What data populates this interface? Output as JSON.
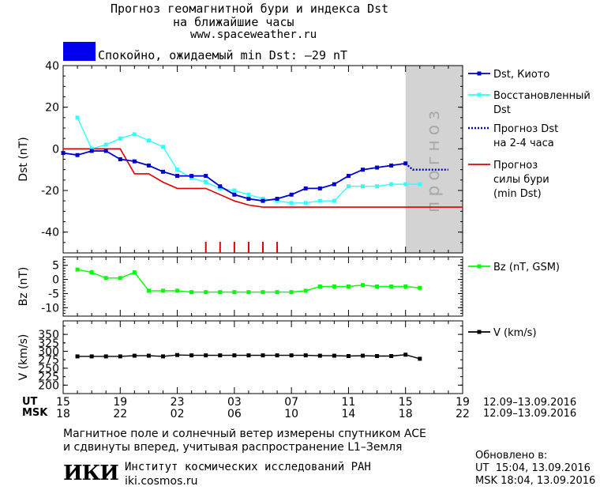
{
  "header": {
    "title_line1": "Прогноз геомагнитной бури и индекса Dst",
    "title_line2": "на ближайшие часы",
    "site": "www.spaceweather.ru"
  },
  "status": {
    "color": "#0000ee",
    "text": "Спокойно, ожидаемый min Dst: –29 nT"
  },
  "forecast_band_label": "прогноз",
  "colors": {
    "dst_kyoto": "#0000cc",
    "dst_restored": "#33ffff",
    "dst_forecast": "#0000cc",
    "storm_min": "#dd0000",
    "bz": "#00ff00",
    "v": "#000000",
    "forecast_band": "#d3d3d3"
  },
  "legend": {
    "dst_kyoto": "Dst, Киото",
    "dst_restored_1": "Восстановленный",
    "dst_restored_2": "Dst",
    "forecast_1": "Прогноз Dst",
    "forecast_2": "на 2-4 часа",
    "storm_1": "Прогноз",
    "storm_2": "силы бури",
    "storm_3": "(min Dst)",
    "bz": "Bz (nT, GSM)",
    "v": "V (km/s)"
  },
  "time_axis": {
    "ut_label": "UT",
    "msk_label": "MSK",
    "ut_ticks": [
      "15",
      "19",
      "23",
      "03",
      "07",
      "11",
      "15",
      "19"
    ],
    "msk_ticks": [
      "18",
      "22",
      "02",
      "06",
      "10",
      "14",
      "18",
      "22"
    ],
    "ut_range": "12.09–13.09.2016",
    "msk_range": "12.09–13.09.2016"
  },
  "footer": {
    "note_1": "Магнитное поле и солнечный ветер измерены спутником ACE",
    "note_2": "и сдвинуты вперед, учитывая распространение L1–Земля",
    "updated_label": "Обновлено в:",
    "updated_ut": "UT  15:04, 13.09.2016",
    "updated_msk": "MSK 18:04, 13.09.2016",
    "logo": "ИКИ",
    "institute": "Институт космических исследований РАН",
    "institute_site": "iki.cosmos.ru"
  },
  "chart_data": [
    {
      "type": "line",
      "ylabel": "Dst (nT)",
      "ylim": [
        -50,
        40
      ],
      "yticks": [
        40,
        20,
        0,
        -20,
        -40
      ],
      "xlim": [
        15,
        43
      ],
      "forecast_region_x": [
        39,
        43
      ],
      "series": [
        {
          "name": "Dst, Киото",
          "x": [
            15,
            16,
            17,
            18,
            19,
            20,
            21,
            22,
            23,
            24,
            25,
            26,
            27,
            28,
            29,
            30,
            31,
            32,
            33,
            34,
            35,
            36,
            37,
            38,
            39
          ],
          "y": [
            -2,
            -3,
            -1,
            -1,
            -5,
            -6,
            -8,
            -11,
            -13,
            -13,
            -13,
            -18,
            -22,
            -24,
            -25,
            -24,
            -22,
            -19,
            -19,
            -17,
            -13,
            -10,
            -9,
            -8,
            -7
          ]
        },
        {
          "name": "Восстановленный Dst",
          "x": [
            16,
            17,
            18,
            19,
            20,
            21,
            22,
            23,
            24,
            25,
            26,
            27,
            28,
            29,
            30,
            31,
            32,
            33,
            34,
            35,
            36,
            37,
            38,
            39,
            40
          ],
          "y": [
            15,
            0,
            2,
            5,
            7,
            4,
            1,
            -10,
            -14,
            -16,
            -19,
            -20,
            -22,
            -24,
            -25,
            -26,
            -26,
            -25,
            -25,
            -18,
            -18,
            -18,
            -17,
            -17,
            -17
          ]
        },
        {
          "name": "Прогноз Dst на 2-4 часа",
          "x": [
            39,
            39.5,
            40,
            41,
            42
          ],
          "y": [
            -7,
            -10,
            -10,
            -10,
            -10
          ]
        },
        {
          "name": "Прогноз силы бури (min Dst)",
          "x": [
            15,
            19,
            20,
            21,
            22,
            23,
            24,
            25,
            26,
            27,
            28,
            29,
            30,
            31,
            32,
            33,
            34,
            35,
            36,
            37,
            38,
            39,
            40,
            41,
            42,
            43
          ],
          "y": [
            0,
            0,
            -12,
            -12,
            -16,
            -19,
            -19,
            -19,
            -22,
            -25,
            -27,
            -28,
            -28,
            -28,
            -28,
            -28,
            -28,
            -28,
            -28,
            -28,
            -28,
            -28,
            -28,
            -28,
            -28,
            -28
          ]
        }
      ],
      "storm_marks_x": [
        25,
        26,
        27,
        28,
        29,
        30
      ]
    },
    {
      "type": "line",
      "ylabel": "Bz (nT)",
      "ylim": [
        -13,
        8
      ],
      "yticks": [
        5,
        0,
        -5,
        -10
      ],
      "xlim": [
        15,
        43
      ],
      "series": [
        {
          "name": "Bz (nT, GSM)",
          "x": [
            16,
            17,
            18,
            19,
            20,
            21,
            22,
            23,
            24,
            25,
            26,
            27,
            28,
            29,
            30,
            31,
            32,
            33,
            34,
            35,
            36,
            37,
            38,
            39,
            40
          ],
          "y": [
            3.5,
            2.5,
            0.5,
            0.5,
            2.5,
            -4,
            -4,
            -4,
            -4.5,
            -4.5,
            -4.5,
            -4.5,
            -4.5,
            -4.5,
            -4.5,
            -4.5,
            -4,
            -2.5,
            -2.5,
            -2.5,
            -2,
            -2.5,
            -2.5,
            -2.5,
            -3
          ]
        }
      ]
    },
    {
      "type": "line",
      "ylabel": "V (km/s)",
      "ylim": [
        175,
        390
      ],
      "yticks": [
        350,
        300,
        250,
        200
      ],
      "ytick_labels_extra": [
        "325",
        "275",
        "225"
      ],
      "xlim": [
        15,
        43
      ],
      "series": [
        {
          "name": "V (km/s)",
          "x": [
            16,
            17,
            18,
            19,
            20,
            21,
            22,
            23,
            24,
            25,
            26,
            27,
            28,
            29,
            30,
            31,
            32,
            33,
            34,
            35,
            36,
            37,
            38,
            39,
            40
          ],
          "y": [
            285,
            285,
            285,
            285,
            287,
            287,
            285,
            289,
            288,
            288,
            288,
            288,
            288,
            288,
            288,
            288,
            288,
            287,
            287,
            286,
            287,
            286,
            286,
            290,
            278
          ]
        }
      ]
    }
  ]
}
